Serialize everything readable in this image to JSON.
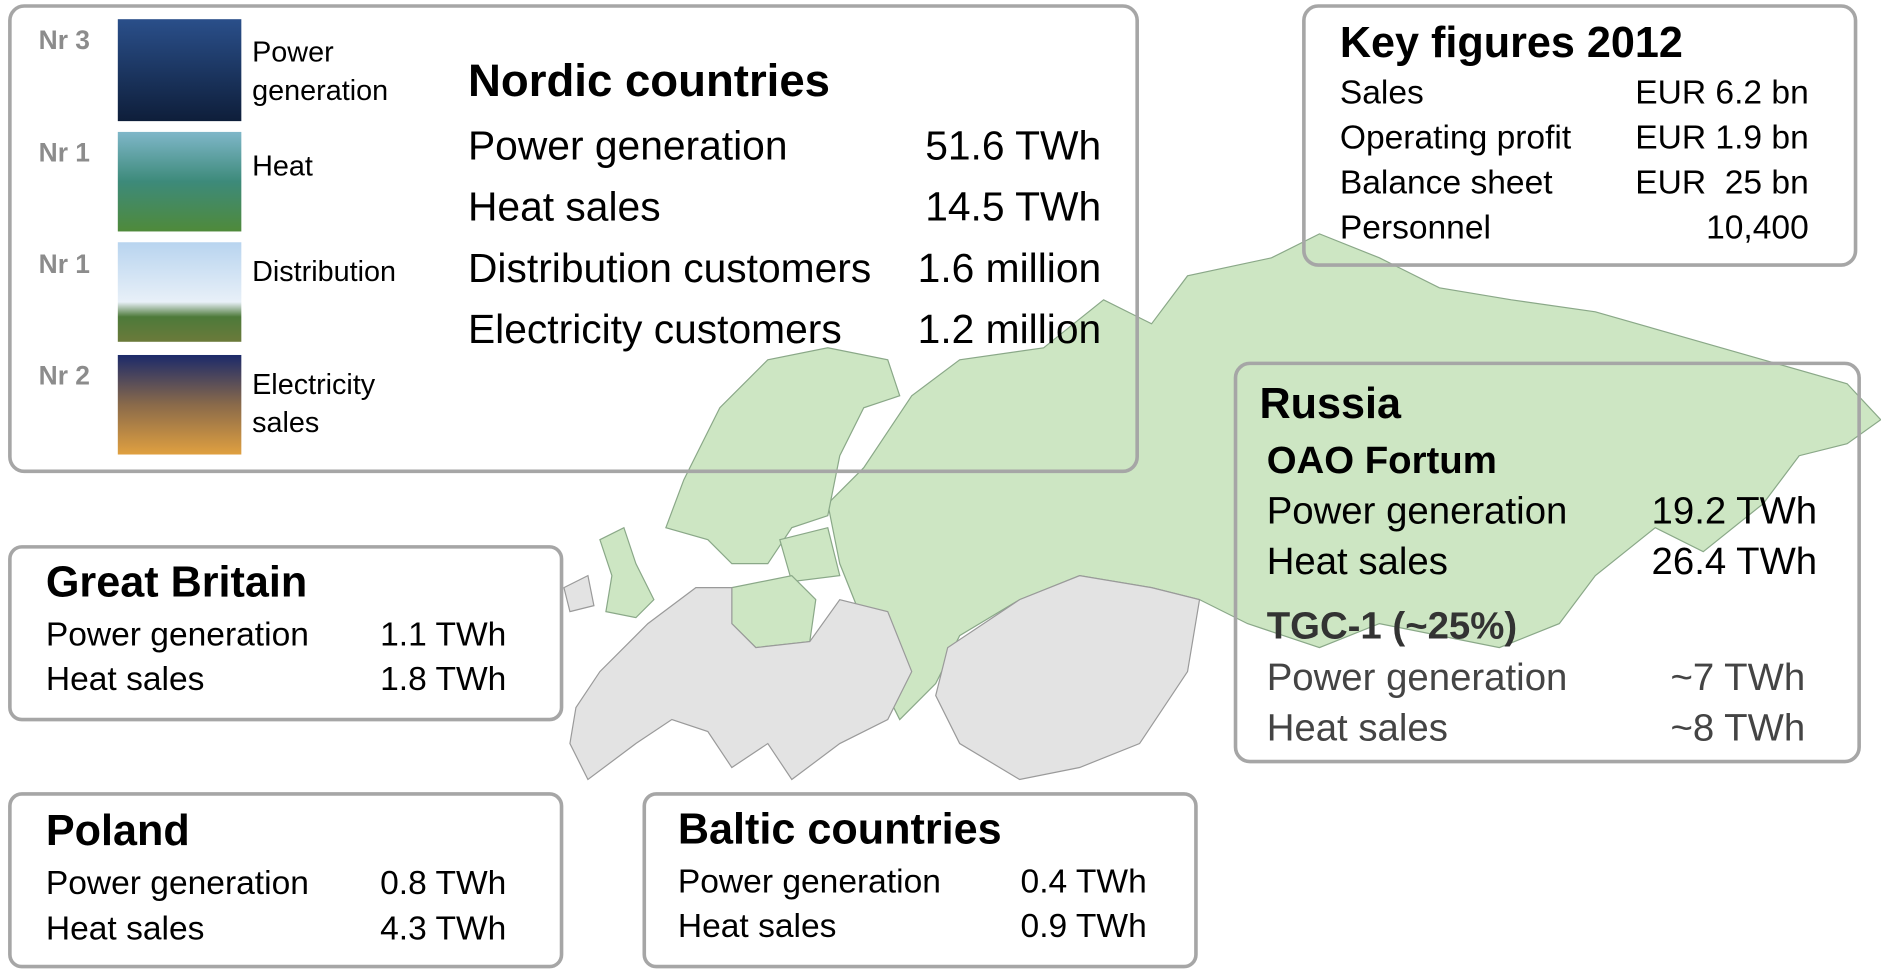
{
  "nordic": {
    "rankings": [
      {
        "rank": "Nr 3",
        "label_lines": [
          "Power",
          "generation"
        ]
      },
      {
        "rank": "Nr 1",
        "label_lines": [
          "Heat"
        ]
      },
      {
        "rank": "Nr 1",
        "label_lines": [
          "Distribution"
        ]
      },
      {
        "rank": "Nr 2",
        "label_lines": [
          "Electricity",
          "sales"
        ]
      }
    ],
    "title": "Nordic countries",
    "rows": [
      [
        "Power generation",
        "51.6 TWh"
      ],
      [
        "Heat sales",
        "14.5 TWh"
      ],
      [
        "Distribution customers",
        "1.6 million"
      ],
      [
        "Electricity customers",
        "1.2 million"
      ]
    ]
  },
  "key_figures": {
    "title": "Key figures 2012",
    "rows": [
      [
        "Sales",
        "EUR 6.2 bn"
      ],
      [
        "Operating profit",
        "EUR 1.9 bn"
      ],
      [
        "Balance sheet",
        "EUR  25 bn"
      ],
      [
        "Personnel",
        "10,400"
      ]
    ]
  },
  "russia": {
    "title": "Russia",
    "sections": [
      {
        "title": "OAO Fortum",
        "rows": [
          [
            "Power generation",
            "19.2 TWh"
          ],
          [
            "Heat sales",
            "26.4 TWh"
          ]
        ]
      },
      {
        "title": "TGC-1 (~25%)",
        "rows": [
          [
            "Power generation",
            "~7 TWh"
          ],
          [
            "Heat sales",
            "~8 TWh"
          ]
        ]
      }
    ]
  },
  "great_britain": {
    "title": "Great Britain",
    "rows": [
      [
        "Power generation",
        "1.1 TWh"
      ],
      [
        "Heat sales",
        "1.8 TWh"
      ]
    ]
  },
  "poland": {
    "title": "Poland",
    "rows": [
      [
        "Power generation",
        "0.8 TWh"
      ],
      [
        "Heat sales",
        "4.3 TWh"
      ]
    ]
  },
  "baltic": {
    "title": "Baltic countries",
    "rows": [
      [
        "Power generation",
        "0.4 TWh"
      ],
      [
        "Heat sales",
        "0.9 TWh"
      ]
    ]
  }
}
